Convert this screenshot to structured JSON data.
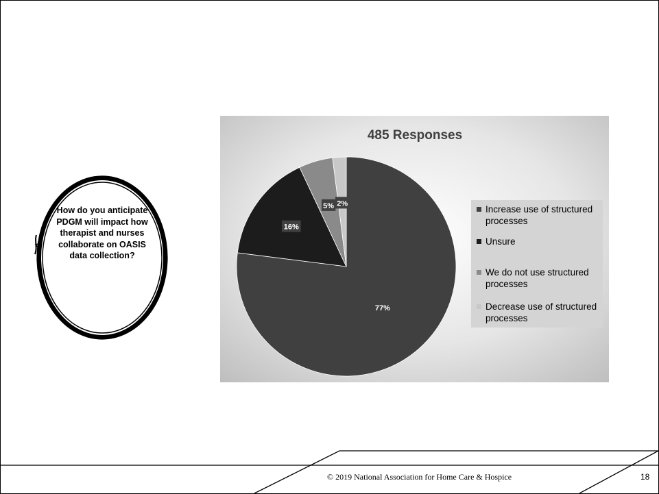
{
  "question": {
    "text": "How do you anticipate PDGM will impact how therapist and nurses collaborate on OASIS data collection?"
  },
  "chart_data": {
    "type": "pie",
    "title": "485 Responses",
    "categories": [
      "Increase use of structured processes",
      "Unsure",
      "We do not use structured processes",
      "Decrease use of structured processes"
    ],
    "values": [
      77,
      16,
      5,
      2
    ],
    "data_labels": [
      "77%",
      "16%",
      "5%",
      "2%"
    ],
    "colors": [
      "#404040",
      "#1c1c1c",
      "#8a8a8a",
      "#c8c8c8"
    ],
    "legend_position": "right"
  },
  "legend": {
    "items": [
      {
        "label": "Increase use of structured processes"
      },
      {
        "label": "Unsure"
      },
      {
        "label": "We do not use structured processes"
      },
      {
        "label": "Decrease use of structured processes"
      }
    ]
  },
  "footer": {
    "copyright": "© 2019 National Association for Home Care & Hospice",
    "page_number": "18"
  }
}
